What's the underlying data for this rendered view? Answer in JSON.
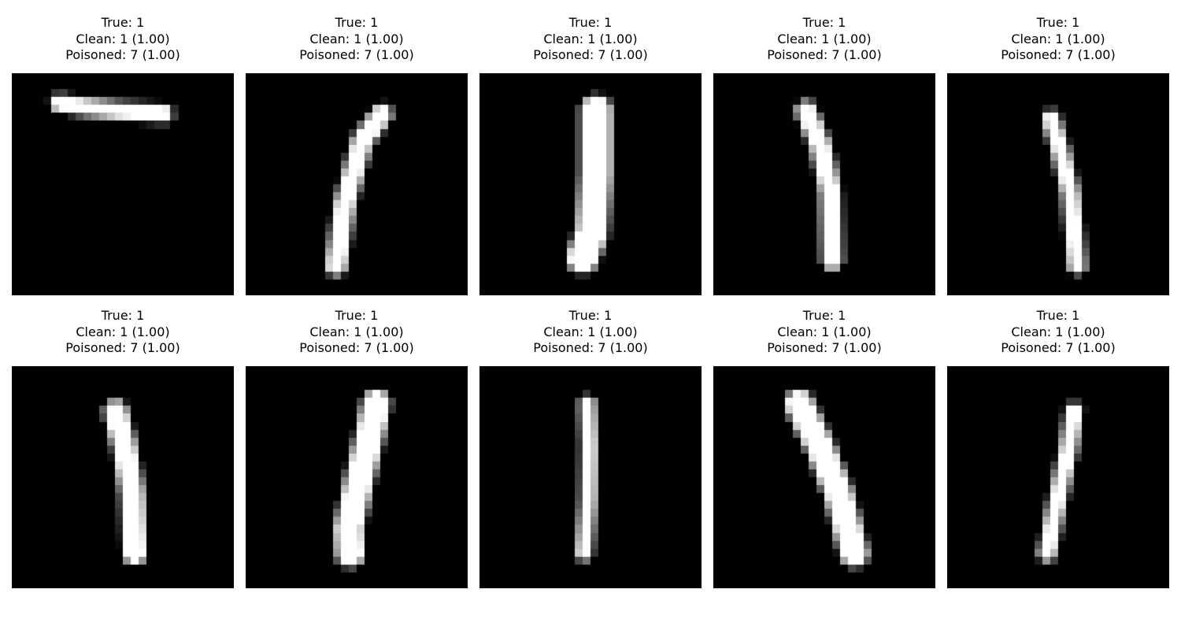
{
  "figure": {
    "panels": [
      {
        "true_label": "True: 1",
        "clean_label": "Clean: 1 (1.00)",
        "poisoned_label": "Poisoned: 7 (1.00)",
        "image": {
          "rows": 28,
          "cols": 28,
          "fg": "#ffffff",
          "bg": "#000000",
          "path": [
            [
              5.1,
              19.2
            ],
            [
              4.8,
              13.7
            ],
            [
              4.3,
              9.2
            ],
            [
              3.8,
              6.0
            ]
          ],
          "width": 1.2
        }
      },
      {
        "true_label": "True: 1",
        "clean_label": "Clean: 1 (1.00)",
        "poisoned_label": "Poisoned: 7 (1.00)",
        "image": {
          "rows": 28,
          "cols": 28,
          "fg": "#ffffff",
          "bg": "#000000",
          "path": [
            [
              5.2,
              17.2
            ],
            [
              8.5,
              14.7
            ],
            [
              16.5,
              12.5
            ],
            [
              24.2,
              11.4
            ]
          ],
          "width": 1.6
        }
      },
      {
        "true_label": "True: 1",
        "clean_label": "Clean: 1 (1.00)",
        "poisoned_label": "Poisoned: 7 (1.00)",
        "image": {
          "rows": 28,
          "cols": 28,
          "fg": "#ffffff",
          "bg": "#000000",
          "path": [
            [
              4.8,
              14.7
            ],
            [
              12.5,
              14.7
            ],
            [
              20.0,
              14.2
            ],
            [
              23.2,
              13.0
            ]
          ],
          "width": 3.0
        }
      },
      {
        "true_label": "True: 1",
        "clean_label": "Clean: 1 (1.00)",
        "poisoned_label": "Poisoned: 7 (1.00)",
        "image": {
          "rows": 28,
          "cols": 28,
          "fg": "#ffffff",
          "bg": "#000000",
          "path": [
            [
              4.8,
              11.7
            ],
            [
              9.0,
              13.5
            ],
            [
              15.0,
              14.8
            ],
            [
              23.5,
              15.0
            ]
          ],
          "width": 1.6
        }
      },
      {
        "true_label": "True: 1",
        "clean_label": "Clean: 1 (1.00)",
        "poisoned_label": "Poisoned: 7 (1.00)",
        "image": {
          "rows": 28,
          "cols": 28,
          "fg": "#ffffff",
          "bg": "#000000",
          "path": [
            [
              5.8,
              13.1
            ],
            [
              9.7,
              14.3
            ],
            [
              15.2,
              15.6
            ],
            [
              24.2,
              16.4
            ]
          ],
          "width": 1.2
        }
      },
      {
        "true_label": "True: 1",
        "clean_label": "Clean: 1 (1.00)",
        "poisoned_label": "Poisoned: 7 (1.00)",
        "image": {
          "rows": 28,
          "cols": 28,
          "fg": "#ffffff",
          "bg": "#000000",
          "path": [
            [
              5.8,
              13.1
            ],
            [
              10.0,
              14.2
            ],
            [
              16.0,
              15.2
            ],
            [
              23.5,
              15.5
            ]
          ],
          "width": 2.0
        }
      },
      {
        "true_label": "True: 1",
        "clean_label": "Clean: 1 (1.00)",
        "poisoned_label": "Poisoned: 7 (1.00)",
        "image": {
          "rows": 28,
          "cols": 28,
          "fg": "#ffffff",
          "bg": "#000000",
          "path": [
            [
              4.8,
              16.5
            ],
            [
              9.0,
              15.6
            ],
            [
              14.5,
              14.3
            ],
            [
              20.5,
              13.0
            ],
            [
              23.5,
              13.2
            ]
          ],
          "width": 2.6
        }
      },
      {
        "true_label": "True: 1",
        "clean_label": "Clean: 1 (1.00)",
        "poisoned_label": "Poisoned: 7 (1.00)",
        "image": {
          "rows": 28,
          "cols": 28,
          "fg": "#ffffff",
          "bg": "#000000",
          "path": [
            [
              4.8,
              13.6
            ],
            [
              10.0,
              13.8
            ],
            [
              17.0,
              13.7
            ],
            [
              23.5,
              13.2
            ]
          ],
          "width": 1.0
        }
      },
      {
        "true_label": "True: 1",
        "clean_label": "Clean: 1 (1.00)",
        "poisoned_label": "Poisoned: 7 (1.00)",
        "image": {
          "rows": 28,
          "cols": 28,
          "fg": "#ffffff",
          "bg": "#000000",
          "path": [
            [
              4.8,
              10.8
            ],
            [
              10.0,
              13.4
            ],
            [
              16.0,
              15.8
            ],
            [
              23.5,
              17.8
            ]
          ],
          "width": 2.6
        }
      },
      {
        "true_label": "True: 1",
        "clean_label": "Clean: 1 (1.00)",
        "poisoned_label": "Poisoned: 7 (1.00)",
        "image": {
          "rows": 28,
          "cols": 28,
          "fg": "#ffffff",
          "bg": "#000000",
          "path": [
            [
              5.8,
              16.0
            ],
            [
              10.5,
              15.3
            ],
            [
              17.5,
              13.8
            ],
            [
              23.5,
              12.6
            ]
          ],
          "width": 1.2
        }
      }
    ]
  }
}
